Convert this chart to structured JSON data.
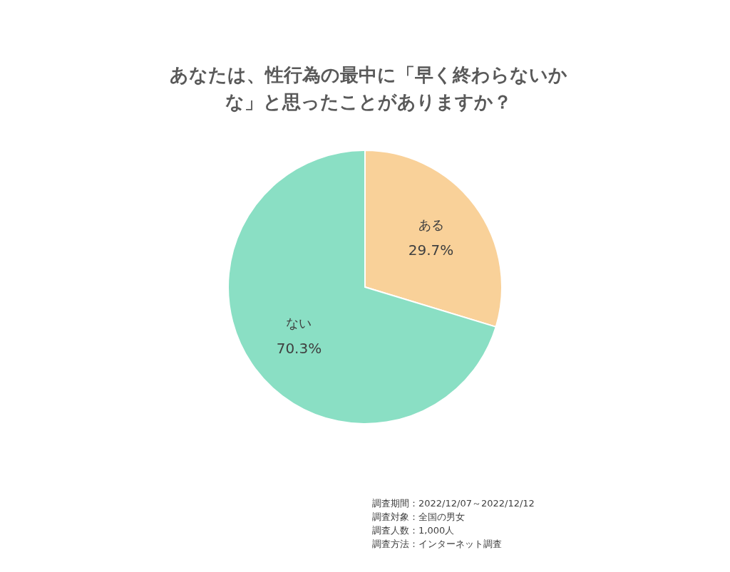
{
  "chart_data": {
    "type": "pie",
    "title": "あなたは、性行為の最中に「早く終わらないかな」と思ったことがありますか？",
    "categories": [
      "ある",
      "ない"
    ],
    "values": [
      29.7,
      70.3
    ],
    "value_labels": [
      "29.7%",
      "70.3%"
    ],
    "colors": [
      "#f9d199",
      "#8adfc4"
    ],
    "annotations": [
      "調査期間：2022/12/07～2022/12/12",
      "調査対象：全国の男女",
      "調査人数：1,000人",
      "調査方法：インターネット調査"
    ]
  }
}
